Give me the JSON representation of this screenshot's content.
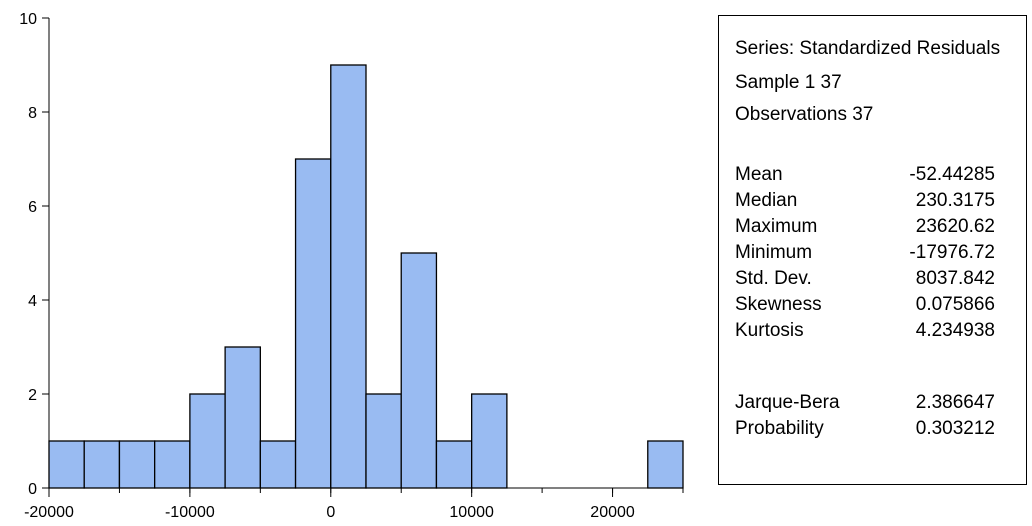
{
  "chart_data": {
    "type": "bar",
    "title": "",
    "xlabel": "",
    "ylabel": "",
    "bins": [
      {
        "x0": -20000,
        "x1": -17500,
        "count": 1
      },
      {
        "x0": -17500,
        "x1": -15000,
        "count": 1
      },
      {
        "x0": -15000,
        "x1": -12500,
        "count": 1
      },
      {
        "x0": -12500,
        "x1": -10000,
        "count": 1
      },
      {
        "x0": -10000,
        "x1": -7500,
        "count": 2
      },
      {
        "x0": -7500,
        "x1": -5000,
        "count": 3
      },
      {
        "x0": -5000,
        "x1": -2500,
        "count": 1
      },
      {
        "x0": -2500,
        "x1": 0,
        "count": 7
      },
      {
        "x0": 0,
        "x1": 2500,
        "count": 9
      },
      {
        "x0": 2500,
        "x1": 5000,
        "count": 2
      },
      {
        "x0": 5000,
        "x1": 7500,
        "count": 5
      },
      {
        "x0": 7500,
        "x1": 10000,
        "count": 1
      },
      {
        "x0": 10000,
        "x1": 12500,
        "count": 2
      },
      {
        "x0": 22500,
        "x1": 25000,
        "count": 1
      }
    ],
    "xlim": [
      -20000,
      25000
    ],
    "ylim": [
      0,
      10
    ],
    "xticks": [
      -20000,
      -10000,
      0,
      10000,
      20000
    ],
    "yticks": [
      0,
      2,
      4,
      6,
      8,
      10
    ],
    "bar_color": "#99bbf2",
    "bar_edge_color": "#000000",
    "grid": false
  },
  "stats": {
    "series": "Series: Standardized Residuals",
    "sample": "Sample 1 37",
    "observations": "Observations 37",
    "rows": [
      {
        "label": "Mean",
        "value": "-52.44285"
      },
      {
        "label": "Median",
        "value": "230.3175"
      },
      {
        "label": "Maximum",
        "value": "23620.62"
      },
      {
        "label": "Minimum",
        "value": "-17976.72"
      },
      {
        "label": "Std. Dev.",
        "value": "8037.842"
      },
      {
        "label": "Skewness",
        "value": "0.075866"
      },
      {
        "label": "Kurtosis",
        "value": "4.234938"
      }
    ],
    "tests": [
      {
        "label": "Jarque-Bera",
        "value": "2.386647"
      },
      {
        "label": "Probability",
        "value": "0.303212"
      }
    ]
  }
}
